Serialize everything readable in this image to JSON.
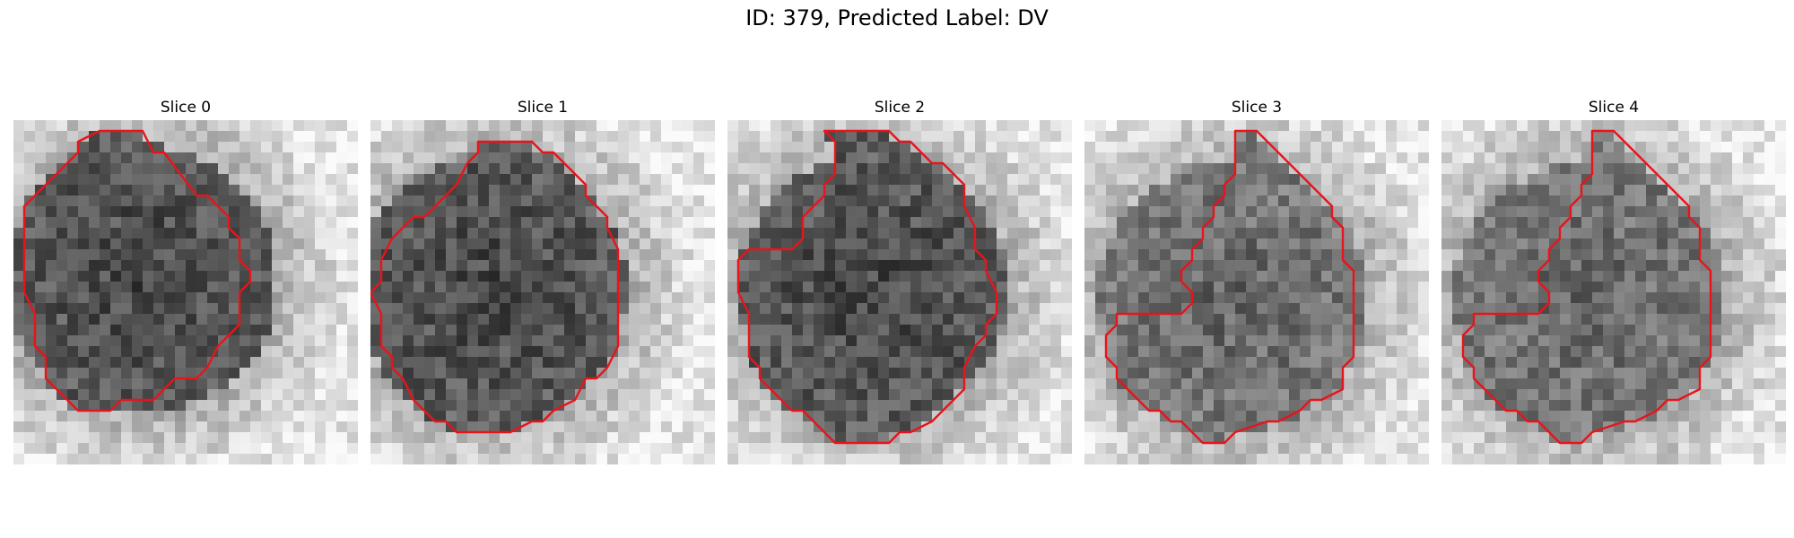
{
  "title": "ID: 379, Predicted Label: DV",
  "colors": {
    "contour": "#e8141b",
    "background": "#ffffff"
  },
  "slices": [
    {
      "label": "Slice 0",
      "contour": [
        [
          11,
          1
        ],
        [
          12,
          1
        ],
        [
          13,
          3
        ],
        [
          14,
          3
        ],
        [
          17,
          7
        ],
        [
          18,
          7
        ],
        [
          20,
          9
        ],
        [
          20,
          10
        ],
        [
          21,
          11
        ],
        [
          21,
          13
        ],
        [
          22,
          14
        ],
        [
          22,
          15
        ],
        [
          21,
          16
        ],
        [
          21,
          19
        ],
        [
          20,
          20
        ],
        [
          19,
          21
        ],
        [
          18,
          23
        ],
        [
          17,
          24
        ],
        [
          15,
          24
        ],
        [
          14,
          25
        ],
        [
          13,
          26
        ],
        [
          10,
          26
        ],
        [
          9,
          27
        ],
        [
          6,
          27
        ],
        [
          5,
          26
        ],
        [
          4,
          25
        ],
        [
          3,
          24
        ],
        [
          3,
          22
        ],
        [
          2,
          21
        ],
        [
          2,
          18
        ],
        [
          1,
          16
        ],
        [
          1,
          8
        ],
        [
          3,
          6
        ],
        [
          5,
          4
        ],
        [
          6,
          3
        ],
        [
          6,
          2
        ],
        [
          8,
          1
        ]
      ]
    },
    {
      "label": "Slice 1",
      "contour": [
        [
          10,
          2
        ],
        [
          11,
          2
        ],
        [
          15,
          2
        ],
        [
          16,
          3
        ],
        [
          17,
          3
        ],
        [
          18,
          4
        ],
        [
          19,
          5
        ],
        [
          20,
          6
        ],
        [
          20,
          7
        ],
        [
          21,
          8
        ],
        [
          22,
          9
        ],
        [
          22,
          10
        ],
        [
          23,
          12
        ],
        [
          23,
          16
        ],
        [
          23,
          21
        ],
        [
          22,
          23
        ],
        [
          21,
          24
        ],
        [
          20,
          24
        ],
        [
          19,
          26
        ],
        [
          17,
          27
        ],
        [
          16,
          28
        ],
        [
          15,
          28
        ],
        [
          13,
          29
        ],
        [
          11,
          29
        ],
        [
          10,
          29
        ],
        [
          8,
          29
        ],
        [
          7,
          28
        ],
        [
          6,
          28
        ],
        [
          5,
          27
        ],
        [
          4,
          26
        ],
        [
          3,
          24
        ],
        [
          2,
          23
        ],
        [
          2,
          22
        ],
        [
          1,
          21
        ],
        [
          1,
          20
        ],
        [
          1,
          18
        ],
        [
          0,
          16
        ],
        [
          1,
          15
        ],
        [
          1,
          13
        ],
        [
          2,
          11
        ],
        [
          3,
          10
        ],
        [
          4,
          9
        ],
        [
          5,
          9
        ],
        [
          6,
          8
        ],
        [
          7,
          7
        ],
        [
          8,
          6
        ],
        [
          9,
          4
        ],
        [
          10,
          3
        ]
      ]
    },
    {
      "label": "Slice 2",
      "contour": [
        [
          9,
          1
        ],
        [
          10,
          1
        ],
        [
          15,
          1
        ],
        [
          16,
          2
        ],
        [
          17,
          2
        ],
        [
          18,
          3
        ],
        [
          19,
          4
        ],
        [
          20,
          4
        ],
        [
          21,
          5
        ],
        [
          22,
          6
        ],
        [
          22,
          8
        ],
        [
          23,
          10
        ],
        [
          23,
          12
        ],
        [
          24,
          13
        ],
        [
          24,
          14
        ],
        [
          25,
          16
        ],
        [
          25,
          18
        ],
        [
          24,
          19
        ],
        [
          24,
          20
        ],
        [
          23,
          21
        ],
        [
          22,
          23
        ],
        [
          22,
          25
        ],
        [
          21,
          26
        ],
        [
          20,
          27
        ],
        [
          19,
          28
        ],
        [
          17,
          29
        ],
        [
          16,
          29
        ],
        [
          15,
          30
        ],
        [
          10,
          30
        ],
        [
          9,
          29
        ],
        [
          8,
          28
        ],
        [
          7,
          27
        ],
        [
          6,
          27
        ],
        [
          5,
          26
        ],
        [
          4,
          25
        ],
        [
          3,
          24
        ],
        [
          3,
          23
        ],
        [
          2,
          22
        ],
        [
          2,
          21
        ],
        [
          2,
          18
        ],
        [
          1,
          16
        ],
        [
          1,
          13
        ],
        [
          2,
          12
        ],
        [
          6,
          12
        ],
        [
          7,
          11
        ],
        [
          7,
          9
        ],
        [
          8,
          8
        ],
        [
          9,
          7
        ],
        [
          9,
          6
        ],
        [
          10,
          5
        ],
        [
          10,
          2
        ]
      ]
    },
    {
      "label": "Slice 3",
      "contour": [
        [
          14,
          1
        ],
        [
          15,
          1
        ],
        [
          16,
          1
        ],
        [
          17,
          2
        ],
        [
          18,
          3
        ],
        [
          20,
          5
        ],
        [
          21,
          6
        ],
        [
          22,
          7
        ],
        [
          23,
          8
        ],
        [
          23,
          9
        ],
        [
          24,
          10
        ],
        [
          24,
          11
        ],
        [
          24,
          13
        ],
        [
          25,
          14
        ],
        [
          25,
          22
        ],
        [
          24,
          23
        ],
        [
          24,
          25
        ],
        [
          22,
          26
        ],
        [
          21,
          26
        ],
        [
          20,
          27
        ],
        [
          18,
          28
        ],
        [
          17,
          28
        ],
        [
          14,
          29
        ],
        [
          13,
          30
        ],
        [
          11,
          30
        ],
        [
          10,
          29
        ],
        [
          9,
          28
        ],
        [
          8,
          28
        ],
        [
          7,
          27
        ],
        [
          6,
          27
        ],
        [
          5,
          26
        ],
        [
          4,
          25
        ],
        [
          3,
          24
        ],
        [
          3,
          23
        ],
        [
          2,
          22
        ],
        [
          2,
          20
        ],
        [
          3,
          19
        ],
        [
          3,
          18
        ],
        [
          9,
          18
        ],
        [
          10,
          17
        ],
        [
          10,
          16
        ],
        [
          9,
          15
        ],
        [
          9,
          14
        ],
        [
          10,
          13
        ],
        [
          10,
          12
        ],
        [
          11,
          11
        ],
        [
          11,
          10
        ],
        [
          12,
          9
        ],
        [
          12,
          8
        ],
        [
          13,
          7
        ],
        [
          13,
          6
        ],
        [
          14,
          5
        ]
      ]
    },
    {
      "label": "Slice 4",
      "contour": [
        [
          14,
          1
        ],
        [
          15,
          1
        ],
        [
          16,
          1
        ],
        [
          17,
          2
        ],
        [
          18,
          3
        ],
        [
          20,
          5
        ],
        [
          21,
          6
        ],
        [
          22,
          7
        ],
        [
          23,
          8
        ],
        [
          23,
          9
        ],
        [
          24,
          10
        ],
        [
          24,
          11
        ],
        [
          24,
          13
        ],
        [
          25,
          14
        ],
        [
          25,
          22
        ],
        [
          24,
          23
        ],
        [
          24,
          25
        ],
        [
          22,
          26
        ],
        [
          21,
          26
        ],
        [
          20,
          27
        ],
        [
          18,
          28
        ],
        [
          17,
          28
        ],
        [
          14,
          29
        ],
        [
          13,
          30
        ],
        [
          11,
          30
        ],
        [
          10,
          29
        ],
        [
          9,
          28
        ],
        [
          8,
          28
        ],
        [
          7,
          27
        ],
        [
          6,
          27
        ],
        [
          5,
          26
        ],
        [
          4,
          25
        ],
        [
          3,
          24
        ],
        [
          3,
          23
        ],
        [
          2,
          22
        ],
        [
          2,
          20
        ],
        [
          3,
          19
        ],
        [
          3,
          18
        ],
        [
          9,
          18
        ],
        [
          10,
          17
        ],
        [
          10,
          16
        ],
        [
          9,
          15
        ],
        [
          9,
          14
        ],
        [
          10,
          13
        ],
        [
          10,
          12
        ],
        [
          11,
          11
        ],
        [
          11,
          10
        ],
        [
          12,
          9
        ],
        [
          12,
          8
        ],
        [
          13,
          7
        ],
        [
          13,
          6
        ],
        [
          14,
          5
        ]
      ]
    }
  ]
}
